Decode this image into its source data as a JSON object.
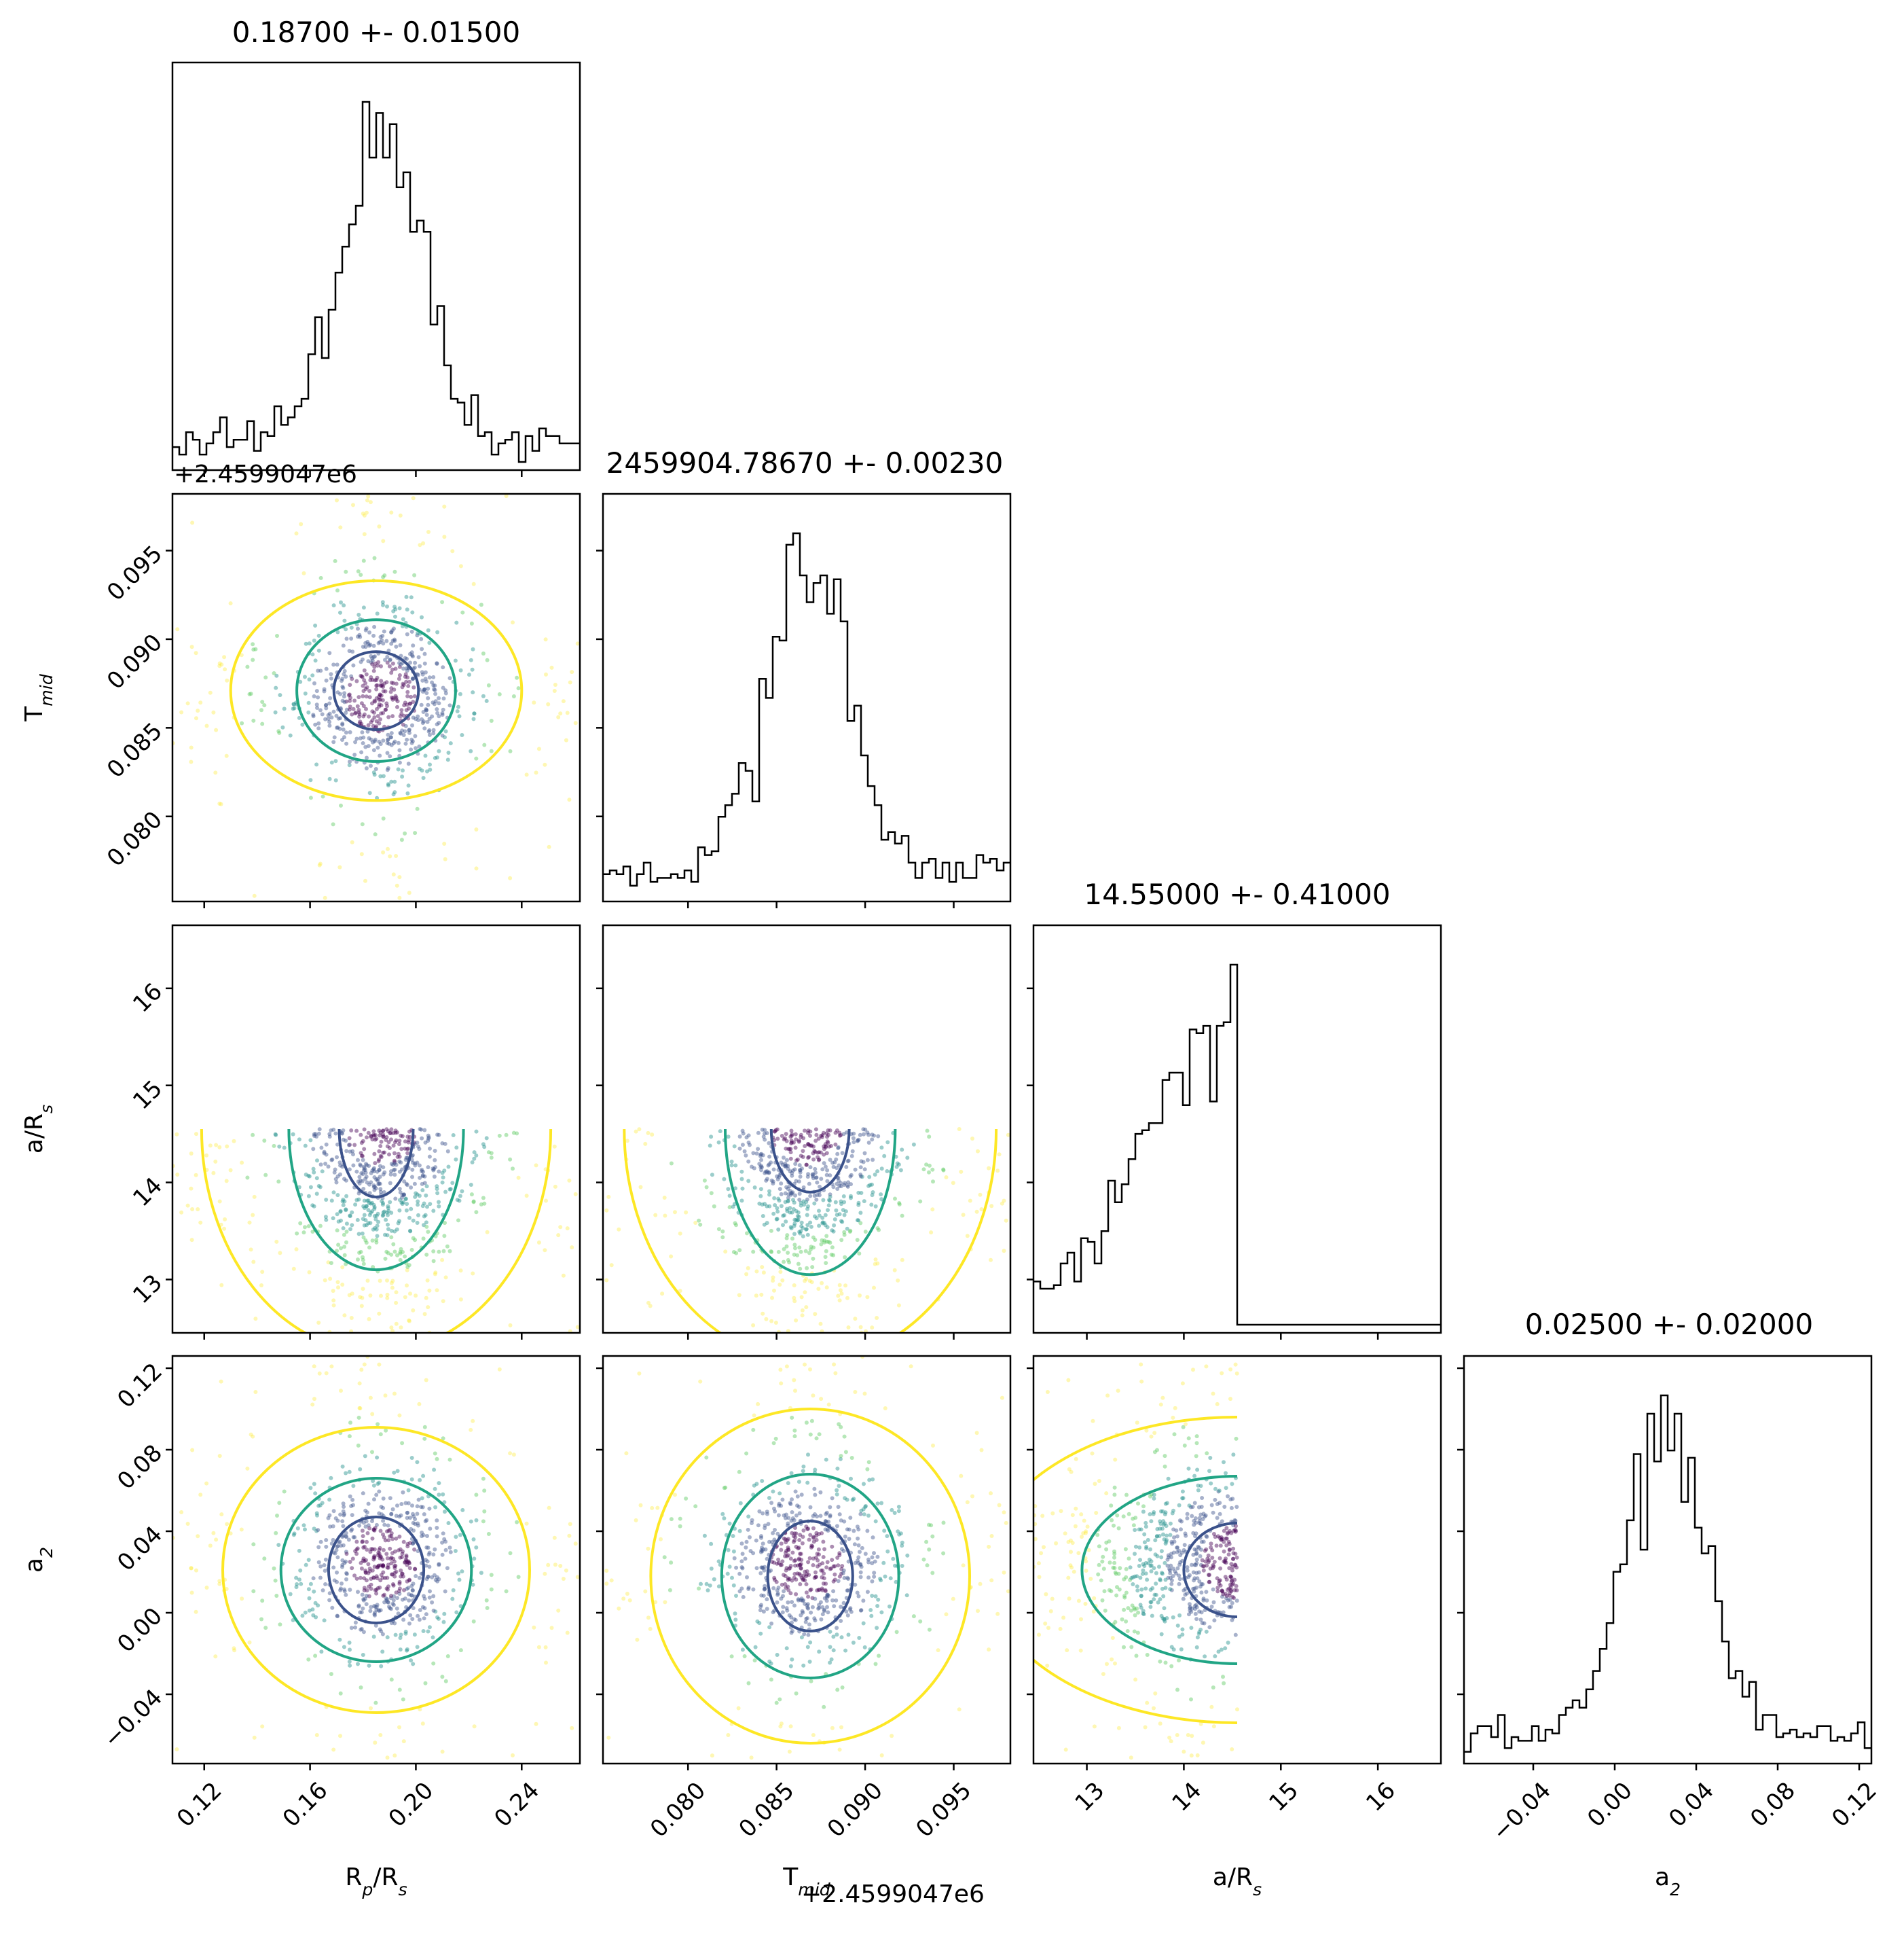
{
  "figure": {
    "offset_text": "+2.4599047e6",
    "panel_titles": [
      "0.18700 +- 0.01500",
      "2459904.78670 +- 0.00230",
      "14.55000 +- 0.41000",
      "0.02500 +- 0.02000"
    ],
    "x_labels": [
      "R_p/R_s",
      "T_mid",
      "a/R_s",
      "a_2"
    ],
    "y_labels": [
      "",
      "T_mid",
      "a/R_s",
      "a_2"
    ],
    "colors": {
      "contour_inner": "#3b528b",
      "contour_mid": "#21a585",
      "contour_outer": "#fde725",
      "hist": "#000000"
    }
  },
  "chart_data": {
    "type": "corner",
    "parameters": [
      {
        "name": "R_p/R_s",
        "median": 0.187,
        "sigma": 0.015,
        "range": [
          0.108,
          0.262
        ],
        "ticks": [
          0.12,
          0.16,
          0.2,
          0.24
        ],
        "tick_labels": [
          "0.12",
          "0.16",
          "0.20",
          "0.24"
        ]
      },
      {
        "name": "T_mid",
        "median": 0.0867,
        "sigma": 0.0023,
        "range": [
          0.0752,
          0.0982
        ],
        "ticks": [
          0.08,
          0.085,
          0.09,
          0.095
        ],
        "tick_labels": [
          "0.080",
          "0.085",
          "0.090",
          "0.095"
        ],
        "offset": 2459904.7
      },
      {
        "name": "a/R_s",
        "median": 14.55,
        "sigma": 0.41,
        "range": [
          12.45,
          16.65
        ],
        "ticks": [
          13,
          14,
          15,
          16
        ],
        "tick_labels": [
          "13",
          "14",
          "15",
          "16"
        ],
        "upper_bound": 14.55
      },
      {
        "name": "a_2",
        "median": 0.025,
        "sigma": 0.02,
        "range": [
          -0.074,
          0.126
        ],
        "ticks": [
          -0.04,
          0.0,
          0.04,
          0.08,
          0.12
        ],
        "tick_labels": [
          "−0.04",
          "0.00",
          "0.04",
          "0.08",
          "0.12"
        ]
      }
    ],
    "contours": {
      "1_0": {
        "center": [
          0.185,
          0.0871
        ],
        "inner": [
          0.016,
          0.0022
        ],
        "mid": [
          0.03,
          0.004
        ],
        "outer": [
          0.055,
          0.0062
        ]
      },
      "2_0": {
        "center": [
          0.185,
          14.55
        ],
        "inner": [
          0.014,
          0.7
        ],
        "mid": [
          0.033,
          1.45
        ],
        "outer": [
          0.066,
          2.3
        ]
      },
      "2_1": {
        "center": [
          0.0869,
          14.55
        ],
        "inner": [
          0.0022,
          0.65
        ],
        "mid": [
          0.0048,
          1.5
        ],
        "outer": [
          0.0105,
          2.4
        ]
      },
      "3_0": {
        "center": [
          0.185,
          0.021
        ],
        "inner": [
          0.018,
          0.026
        ],
        "mid": [
          0.036,
          0.045
        ],
        "outer": [
          0.058,
          0.07
        ]
      },
      "3_1": {
        "center": [
          0.0869,
          0.018
        ],
        "inner": [
          0.0024,
          0.027
        ],
        "mid": [
          0.005,
          0.05
        ],
        "outer": [
          0.009,
          0.082
        ]
      },
      "3_2": {
        "center": [
          14.55,
          0.021
        ],
        "inner": [
          0.55,
          0.023
        ],
        "mid": [
          1.6,
          0.046
        ],
        "outer": [
          2.6,
          0.075
        ]
      }
    }
  }
}
